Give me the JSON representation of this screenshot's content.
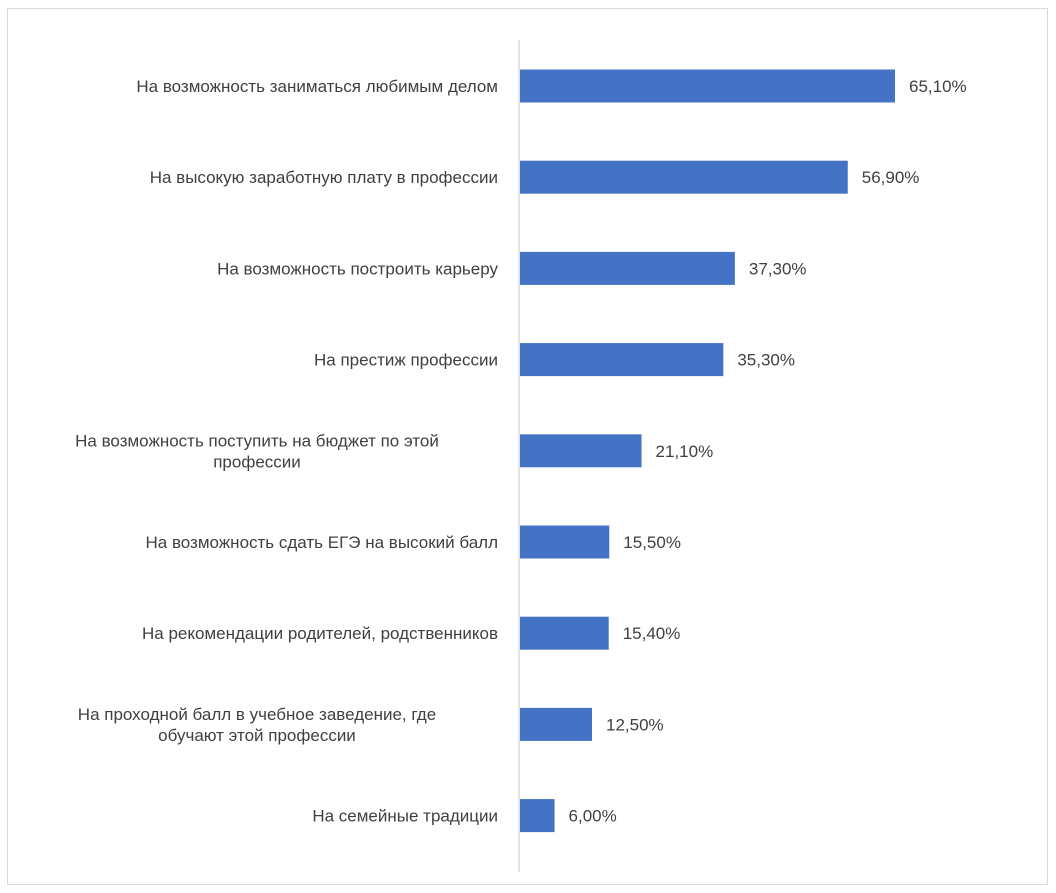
{
  "chart_data": {
    "type": "bar",
    "orientation": "horizontal",
    "categories": [
      [
        "На возможность заниматься любимым делом"
      ],
      [
        "На высокую заработную плату в профессии"
      ],
      [
        "На возможность построить карьеру"
      ],
      [
        "На престиж профессии"
      ],
      [
        "На возможность поступить на бюджет по этой",
        "профессии"
      ],
      [
        "На возможность сдать ЕГЭ на высокий балл"
      ],
      [
        "На рекомендации родителей, родственников"
      ],
      [
        "На проходной балл в учебное заведение, где",
        "обучают этой профессии"
      ],
      [
        "На семейные традиции"
      ]
    ],
    "values": [
      65.1,
      56.9,
      37.3,
      35.3,
      21.1,
      15.5,
      15.4,
      12.5,
      6.0
    ],
    "value_labels": [
      "65,10%",
      "56,90%",
      "37,30%",
      "35,30%",
      "21,10%",
      "15,50%",
      "15,40%",
      "12,50%",
      "6,00%"
    ],
    "bar_color": "#4472c4",
    "axis_color": "#d9d9d9",
    "text_color": "#404040",
    "title": "",
    "xlabel": "",
    "ylabel": "",
    "grid": false,
    "legend": "none"
  }
}
